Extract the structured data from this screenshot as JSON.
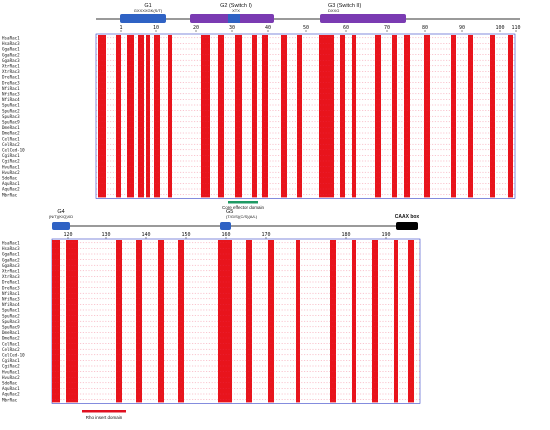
{
  "top_panel": {
    "numbering": [
      "1",
      "10",
      "20",
      "30",
      "40",
      "50",
      "60",
      "70",
      "80",
      "90",
      "100",
      "110"
    ],
    "motifs": [
      {
        "name": "G1",
        "detail": "GXXXXGK(S/T)"
      },
      {
        "name": "G2 (Switch I)",
        "detail": "XTX"
      },
      {
        "name": "G3 (Switch II)",
        "detail": "DXXG"
      }
    ],
    "domain_labels": [
      "Core effector domain"
    ]
  },
  "bottom_panel": {
    "numbering": [
      "120",
      "130",
      "140",
      "150",
      "160",
      "170",
      "180",
      "190"
    ],
    "motifs": [
      {
        "name": "G4",
        "detail": "(N/T)(K/Q)XD"
      },
      {
        "name": "G5",
        "detail": "(T/G/S)(C/S)(A/L)"
      },
      {
        "name": "CAAX box",
        "detail": ""
      }
    ],
    "domain_labels": [
      "Rho insert domain"
    ]
  },
  "sequence_names": [
    "HsaRac1",
    "HsaRac3",
    "GgaRac1",
    "GgaRac2",
    "GgaRac3",
    "XtrRac1",
    "XtrRac3",
    "DreRac1",
    "DreRac3",
    "NfiRac1",
    "NfiRac3",
    "NfiRac4",
    "SpuRac1",
    "SpuRac2",
    "SpuRac3",
    "SpuRac9",
    "DmeRac1",
    "DmeRac2",
    "CelRac1",
    "CelRac2",
    "CelCed-10",
    "CgiRac1",
    "CgiRac2",
    "HvuRac1",
    "HvuRac2",
    "SdoRac",
    "AquRac1",
    "AquRac2",
    "MbrRac"
  ],
  "colors": {
    "conserved_column": "#e8141c",
    "similar_residue": "#e8141c",
    "frame": "#3340c8",
    "motif_blue": "#2f62c4",
    "motif_purple": "#7a3bb2",
    "core_effector_bar": "#1f9a64",
    "rho_insert_bar": "#e01020",
    "caax_black": "#000000",
    "backbone_gray": "#9a9a9a"
  }
}
